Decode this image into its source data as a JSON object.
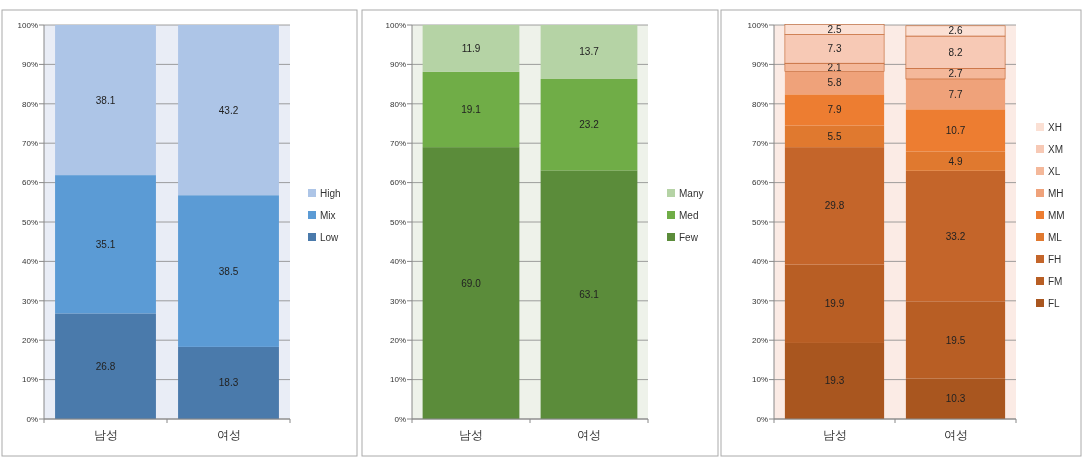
{
  "chart_data": [
    {
      "type": "bar",
      "stacked": true,
      "categories": [
        "남성",
        "여성"
      ],
      "ylim": [
        0,
        100
      ],
      "yticks": [
        {
          "value": 0,
          "label": "0%"
        },
        {
          "value": 10,
          "label": "10%"
        },
        {
          "value": 20,
          "label": "20%"
        },
        {
          "value": 30,
          "label": "30%"
        },
        {
          "value": 40,
          "label": "40%"
        },
        {
          "value": 50,
          "label": "50%"
        },
        {
          "value": 60,
          "label": "60%"
        },
        {
          "value": 70,
          "label": "70%"
        },
        {
          "value": 80,
          "label": "80%"
        },
        {
          "value": 90,
          "label": "90%"
        },
        {
          "value": 100,
          "label": "100%"
        }
      ],
      "grid": "y",
      "legend": "right",
      "data_labels": true,
      "series": [
        {
          "name": "Low",
          "color": "#4a7aab",
          "values": [
            26.8,
            18.3
          ]
        },
        {
          "name": "Mix",
          "color": "#5b9bd5",
          "values": [
            35.1,
            38.5
          ]
        },
        {
          "name": "High",
          "color": "#adc5e7",
          "values": [
            38.1,
            43.2
          ]
        }
      ]
    },
    {
      "type": "bar",
      "stacked": true,
      "categories": [
        "남성",
        "여성"
      ],
      "ylim": [
        0,
        100
      ],
      "yticks": [
        {
          "value": 0,
          "label": "0%"
        },
        {
          "value": 10,
          "label": "10%"
        },
        {
          "value": 20,
          "label": "20%"
        },
        {
          "value": 30,
          "label": "30%"
        },
        {
          "value": 40,
          "label": "40%"
        },
        {
          "value": 50,
          "label": "50%"
        },
        {
          "value": 60,
          "label": "60%"
        },
        {
          "value": 70,
          "label": "70%"
        },
        {
          "value": 80,
          "label": "80%"
        },
        {
          "value": 90,
          "label": "90%"
        },
        {
          "value": 100,
          "label": "100%"
        }
      ],
      "grid": "y",
      "legend": "right",
      "data_labels": true,
      "series": [
        {
          "name": "Few",
          "color": "#5b8c3a",
          "values": [
            69.0,
            63.1
          ],
          "value_labels": [
            "69.0",
            "63.1"
          ]
        },
        {
          "name": "Med",
          "color": "#70ad47",
          "values": [
            19.1,
            23.2
          ]
        },
        {
          "name": "Many",
          "color": "#b5d3a5",
          "values": [
            11.9,
            13.7
          ]
        }
      ]
    },
    {
      "type": "bar",
      "stacked": true,
      "categories": [
        "남성",
        "여성"
      ],
      "ylim": [
        0,
        100
      ],
      "yticks": [
        {
          "value": 0,
          "label": "0%"
        },
        {
          "value": 10,
          "label": "10%"
        },
        {
          "value": 20,
          "label": "20%"
        },
        {
          "value": 30,
          "label": "30%"
        },
        {
          "value": 40,
          "label": "40%"
        },
        {
          "value": 50,
          "label": "50%"
        },
        {
          "value": 60,
          "label": "60%"
        },
        {
          "value": 70,
          "label": "70%"
        },
        {
          "value": 80,
          "label": "80%"
        },
        {
          "value": 90,
          "label": "90%"
        },
        {
          "value": 100,
          "label": "100%"
        }
      ],
      "grid": "y",
      "legend": "right",
      "data_labels": true,
      "series": [
        {
          "name": "FL",
          "color": "#a9561f",
          "values": [
            19.3,
            10.3
          ]
        },
        {
          "name": "FM",
          "color": "#b85e24",
          "values": [
            19.9,
            19.5
          ]
        },
        {
          "name": "FH",
          "color": "#c4652a",
          "values": [
            29.8,
            33.2
          ]
        },
        {
          "name": "ML",
          "color": "#e0792f",
          "values": [
            5.5,
            4.9
          ]
        },
        {
          "name": "MM",
          "color": "#ed7d31",
          "values": [
            7.9,
            10.7
          ]
        },
        {
          "name": "MH",
          "color": "#efa27a",
          "values": [
            5.8,
            7.7
          ]
        },
        {
          "name": "XL",
          "color": "#f4b89a",
          "values": [
            2.1,
            2.7
          ]
        },
        {
          "name": "XM",
          "color": "#f7c9b5",
          "values": [
            7.3,
            8.2
          ]
        },
        {
          "name": "XH",
          "color": "#fbe0d4",
          "values": [
            2.5,
            2.6
          ]
        }
      ]
    }
  ]
}
